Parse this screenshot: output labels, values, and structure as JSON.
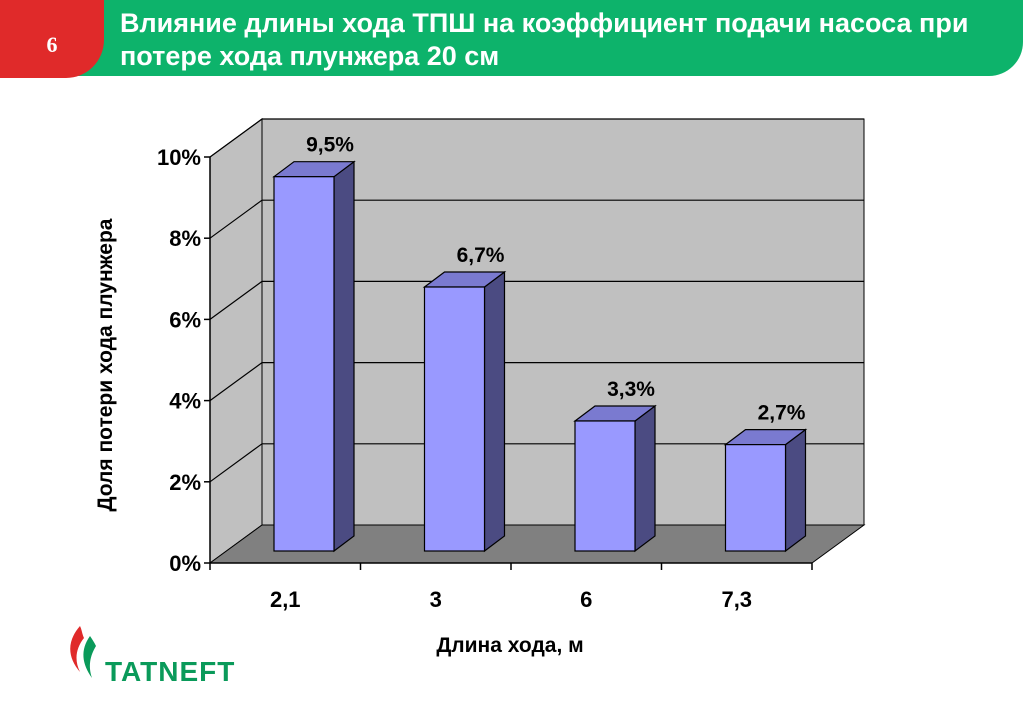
{
  "slide": {
    "number": "6",
    "title": "Влияние длины хода ТПШ на коэффициент подачи насоса при потере хода плунжера 20 см"
  },
  "logo": {
    "text": "TATNEFT"
  },
  "colors": {
    "header_green": "#0db36b",
    "header_red": "#e02a2a",
    "bar_front": "#9999ff",
    "bar_side": "#4b4b82",
    "plot_back": "#c0c0c0",
    "floor": "#808080",
    "logo_green": "#0a9a5a"
  },
  "chart_data": {
    "type": "bar",
    "categories": [
      "2,1",
      "3",
      "6",
      "7,3"
    ],
    "values": [
      9.5,
      6.7,
      3.3,
      2.7
    ],
    "data_labels": [
      "9,5%",
      "6,7%",
      "3,3%",
      "2,7%"
    ],
    "xlabel": "Длина хода, м",
    "ylabel": "Доля потери хода плунжера",
    "ylim": [
      0,
      10
    ],
    "yticks": [
      0,
      2,
      4,
      6,
      8,
      10
    ],
    "ytick_labels": [
      "0%",
      "2%",
      "4%",
      "6%",
      "8%",
      "10%"
    ],
    "grid": true,
    "style": "3d"
  }
}
